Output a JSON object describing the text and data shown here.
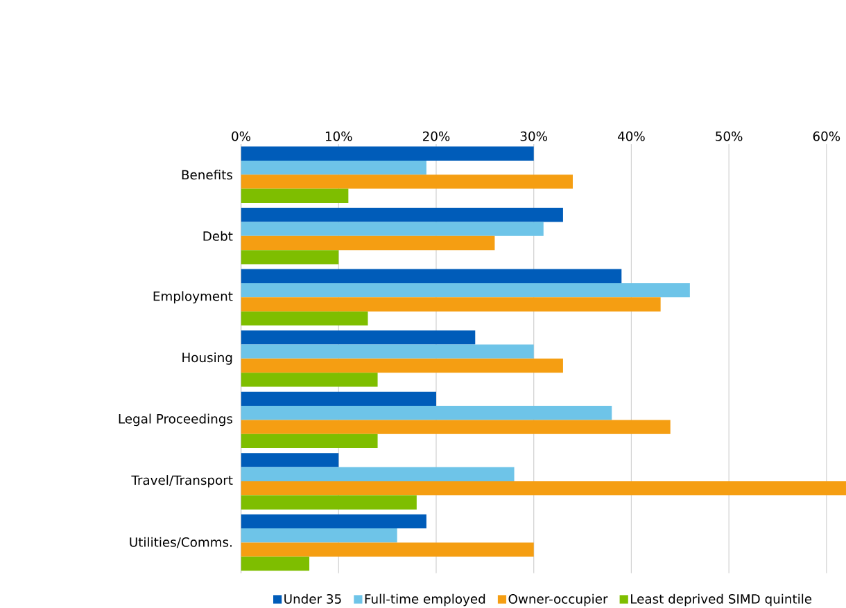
{
  "chart_data": {
    "type": "bar",
    "orientation": "horizontal",
    "categories": [
      "Benefits",
      "Debt",
      "Employment",
      "Housing",
      "Legal Proceedings",
      "Travel/Transport",
      "Utilities/Comms."
    ],
    "series": [
      {
        "name": "Under 35",
        "color": "#005cb9",
        "values": [
          30,
          33,
          39,
          24,
          20,
          10,
          19
        ]
      },
      {
        "name": "Full-time employed",
        "color": "#6ec4e8",
        "values": [
          19,
          31,
          46,
          30,
          38,
          28,
          16
        ]
      },
      {
        "name": "Owner-occupier",
        "color": "#f59e12",
        "values": [
          34,
          26,
          43,
          33,
          44,
          62,
          30
        ]
      },
      {
        "name": "Least deprived SIMD quintile",
        "color": "#7ebe00",
        "values": [
          11,
          10,
          13,
          14,
          14,
          18,
          7
        ]
      }
    ],
    "xlim": [
      0,
      62
    ],
    "xticks": [
      {
        "value": 0,
        "label": "0%"
      },
      {
        "value": 10,
        "label": "10%"
      },
      {
        "value": 20,
        "label": "20%"
      },
      {
        "value": 30,
        "label": "30%"
      },
      {
        "value": 40,
        "label": "40%"
      },
      {
        "value": 50,
        "label": "50%"
      },
      {
        "value": 60,
        "label": "60%"
      }
    ],
    "grid": "x",
    "legend": "bottom"
  }
}
